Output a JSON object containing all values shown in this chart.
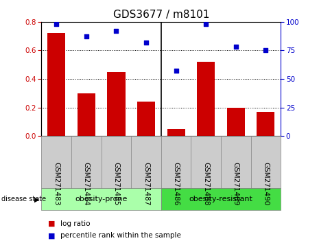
{
  "title": "GDS3677 / m8101",
  "categories": [
    "GSM271483",
    "GSM271484",
    "GSM271485",
    "GSM271487",
    "GSM271486",
    "GSM271488",
    "GSM271489",
    "GSM271490"
  ],
  "log_ratio": [
    0.72,
    0.3,
    0.45,
    0.24,
    0.05,
    0.52,
    0.2,
    0.17
  ],
  "percentile_rank": [
    98,
    87,
    92,
    82,
    57,
    98,
    78,
    75
  ],
  "bar_color": "#cc0000",
  "marker_color": "#0000cc",
  "left_ylim": [
    0,
    0.8
  ],
  "right_ylim": [
    0,
    100
  ],
  "left_yticks": [
    0,
    0.2,
    0.4,
    0.6,
    0.8
  ],
  "right_yticks": [
    0,
    25,
    50,
    75,
    100
  ],
  "group1_label": "obesity-prone",
  "group2_label": "obesity-resistant",
  "group1_count": 4,
  "group2_count": 4,
  "group1_color": "#aaffaa",
  "group2_color": "#44dd44",
  "gray_color": "#cccccc",
  "disease_state_label": "disease state",
  "legend_bar_label": "log ratio",
  "legend_marker_label": "percentile rank within the sample",
  "bar_width": 0.6,
  "dotted_gridlines": [
    0.2,
    0.4,
    0.6
  ],
  "title_fontsize": 11,
  "tick_label_fontsize": 7.5,
  "legend_fontsize": 7.5
}
